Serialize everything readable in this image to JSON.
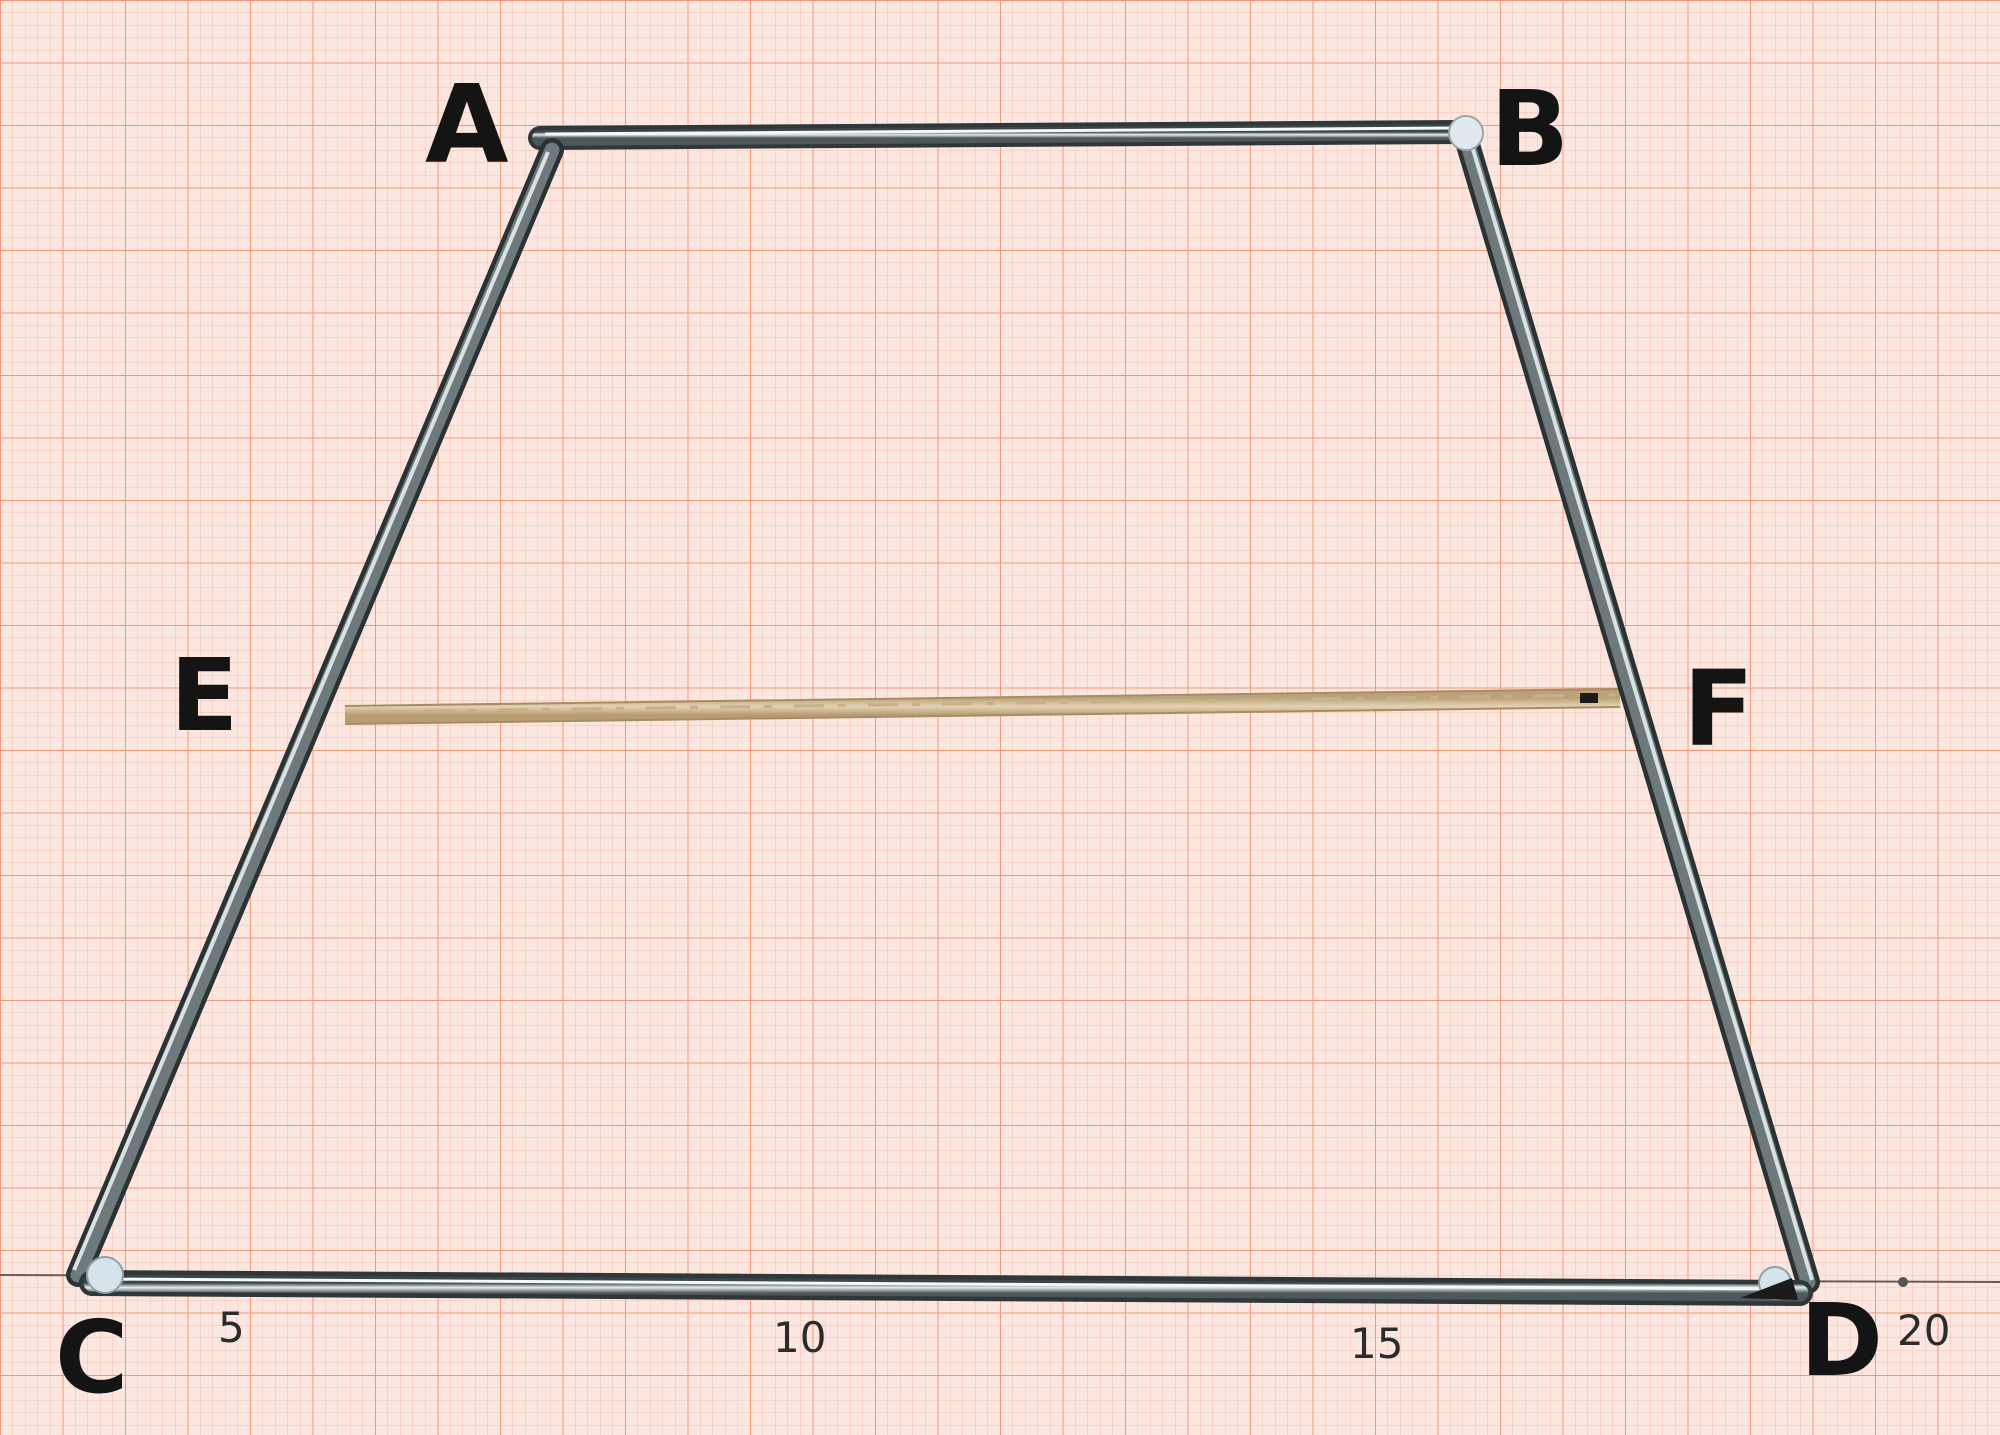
{
  "photo": {
    "subject": "metal-rod trapezoid on graph paper with wooden stick",
    "colors": {
      "paper": "#fbe7df",
      "grid_minor": "#f4b59e",
      "grid_major": "#ee8f70",
      "metal_rod": "#5f6b6f",
      "metal_highlight": "#dfe6e8",
      "wood_stick": "#d6c2a0",
      "ink": "#141414"
    }
  },
  "vertices": {
    "A": "A",
    "B": "B",
    "C": "C",
    "D": "D",
    "E": "E",
    "F": "F"
  },
  "scale_marks": [
    "5",
    "10",
    "15",
    "20"
  ]
}
